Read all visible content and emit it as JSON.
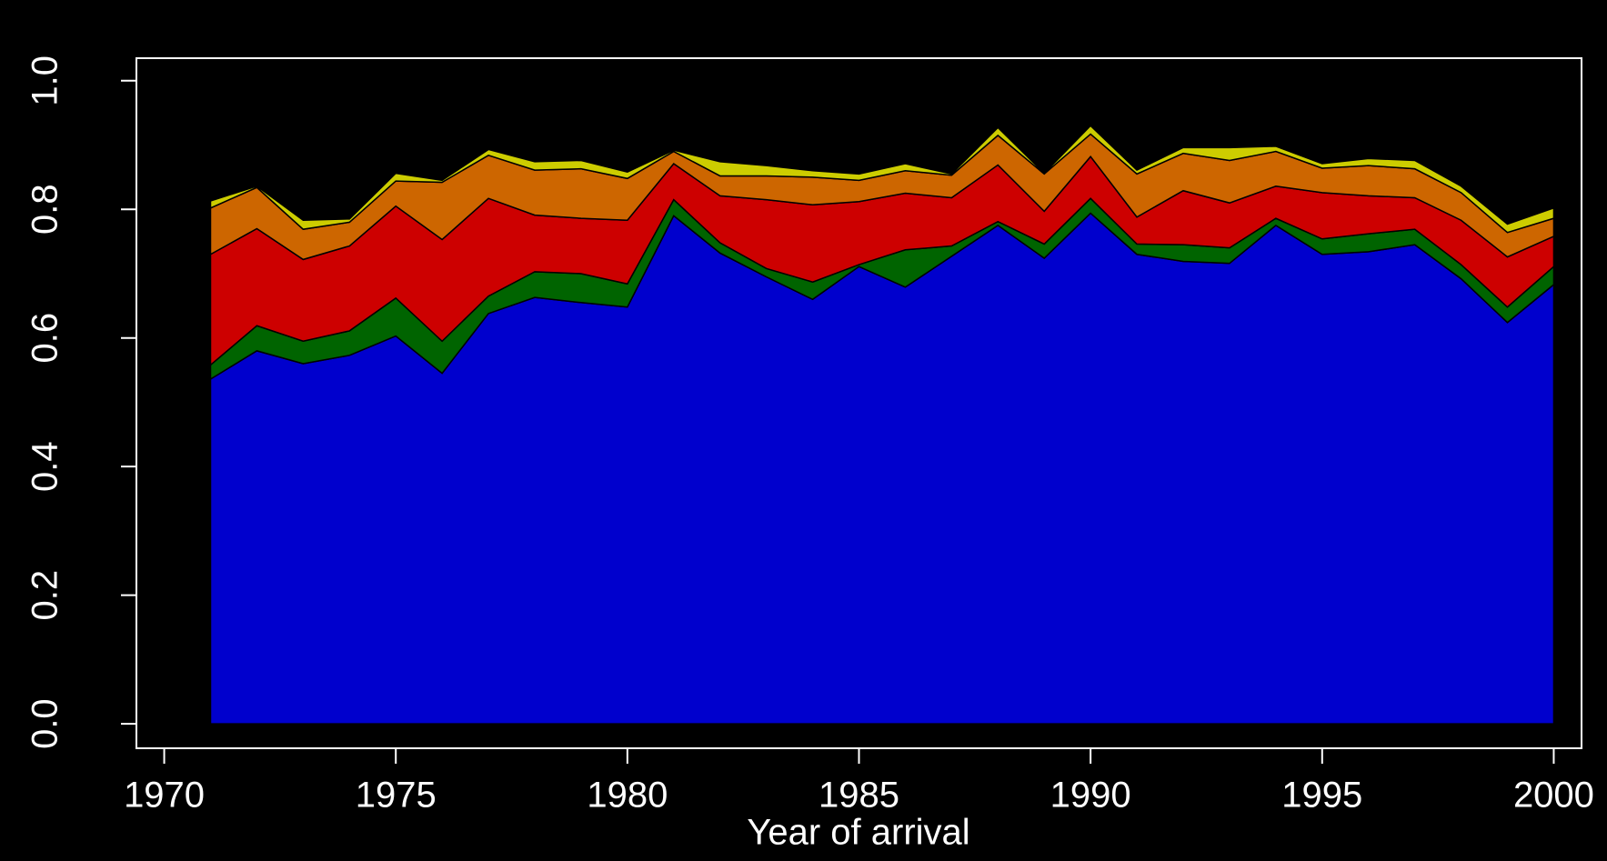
{
  "chart_data": {
    "type": "stacked_area",
    "xlabel": "Year of arrival",
    "x": [
      1971,
      1972,
      1973,
      1974,
      1975,
      1976,
      1977,
      1978,
      1979,
      1980,
      1981,
      1982,
      1983,
      1984,
      1985,
      1986,
      1987,
      1988,
      1989,
      1990,
      1991,
      1992,
      1993,
      1994,
      1995,
      1996,
      1997,
      1998,
      1999,
      2000
    ],
    "series": [
      {
        "color": "#0000cd",
        "values": [
          0.536,
          0.58,
          0.56,
          0.573,
          0.603,
          0.545,
          0.638,
          0.663,
          0.655,
          0.648,
          0.79,
          0.732,
          0.695,
          0.66,
          0.711,
          0.679,
          0.727,
          0.775,
          0.724,
          0.794,
          0.73,
          0.719,
          0.716,
          0.775,
          0.73,
          0.734,
          0.745,
          0.692,
          0.624,
          0.683
        ]
      },
      {
        "color": "#006400",
        "values": [
          0.022,
          0.039,
          0.035,
          0.038,
          0.059,
          0.05,
          0.027,
          0.04,
          0.045,
          0.036,
          0.025,
          0.016,
          0.013,
          0.027,
          0.003,
          0.058,
          0.016,
          0.006,
          0.022,
          0.023,
          0.016,
          0.026,
          0.024,
          0.011,
          0.024,
          0.028,
          0.024,
          0.022,
          0.024,
          0.028
        ]
      },
      {
        "color": "#cd0000",
        "values": [
          0.172,
          0.151,
          0.127,
          0.132,
          0.143,
          0.158,
          0.152,
          0.088,
          0.086,
          0.099,
          0.056,
          0.073,
          0.107,
          0.12,
          0.098,
          0.088,
          0.075,
          0.088,
          0.051,
          0.065,
          0.042,
          0.084,
          0.07,
          0.05,
          0.072,
          0.059,
          0.049,
          0.069,
          0.078,
          0.047
        ]
      },
      {
        "color": "#cd6600",
        "values": [
          0.072,
          0.064,
          0.047,
          0.037,
          0.039,
          0.089,
          0.067,
          0.07,
          0.077,
          0.065,
          0.019,
          0.031,
          0.037,
          0.043,
          0.033,
          0.035,
          0.035,
          0.046,
          0.058,
          0.035,
          0.067,
          0.058,
          0.066,
          0.054,
          0.038,
          0.047,
          0.045,
          0.043,
          0.038,
          0.028
        ]
      },
      {
        "color": "#cdcd00",
        "values": [
          0.011,
          0.002,
          0.014,
          0.005,
          0.012,
          0.003,
          0.009,
          0.013,
          0.013,
          0.01,
          0.002,
          0.022,
          0.016,
          0.01,
          0.01,
          0.011,
          0.002,
          0.012,
          0.001,
          0.013,
          0.006,
          0.009,
          0.02,
          0.008,
          0.007,
          0.011,
          0.013,
          0.01,
          0.013,
          0.016
        ]
      }
    ],
    "xlim": [
      1969.4,
      2000.6
    ],
    "ylim": [
      -0.038,
      1.035
    ],
    "xticks": [
      1970,
      1975,
      1980,
      1985,
      1990,
      1995,
      2000
    ],
    "yticks": [
      {
        "value": 0,
        "label": "0.0"
      },
      0.2,
      0.4,
      0.6,
      0.8,
      {
        "value": 1,
        "label": "1.0"
      }
    ]
  }
}
